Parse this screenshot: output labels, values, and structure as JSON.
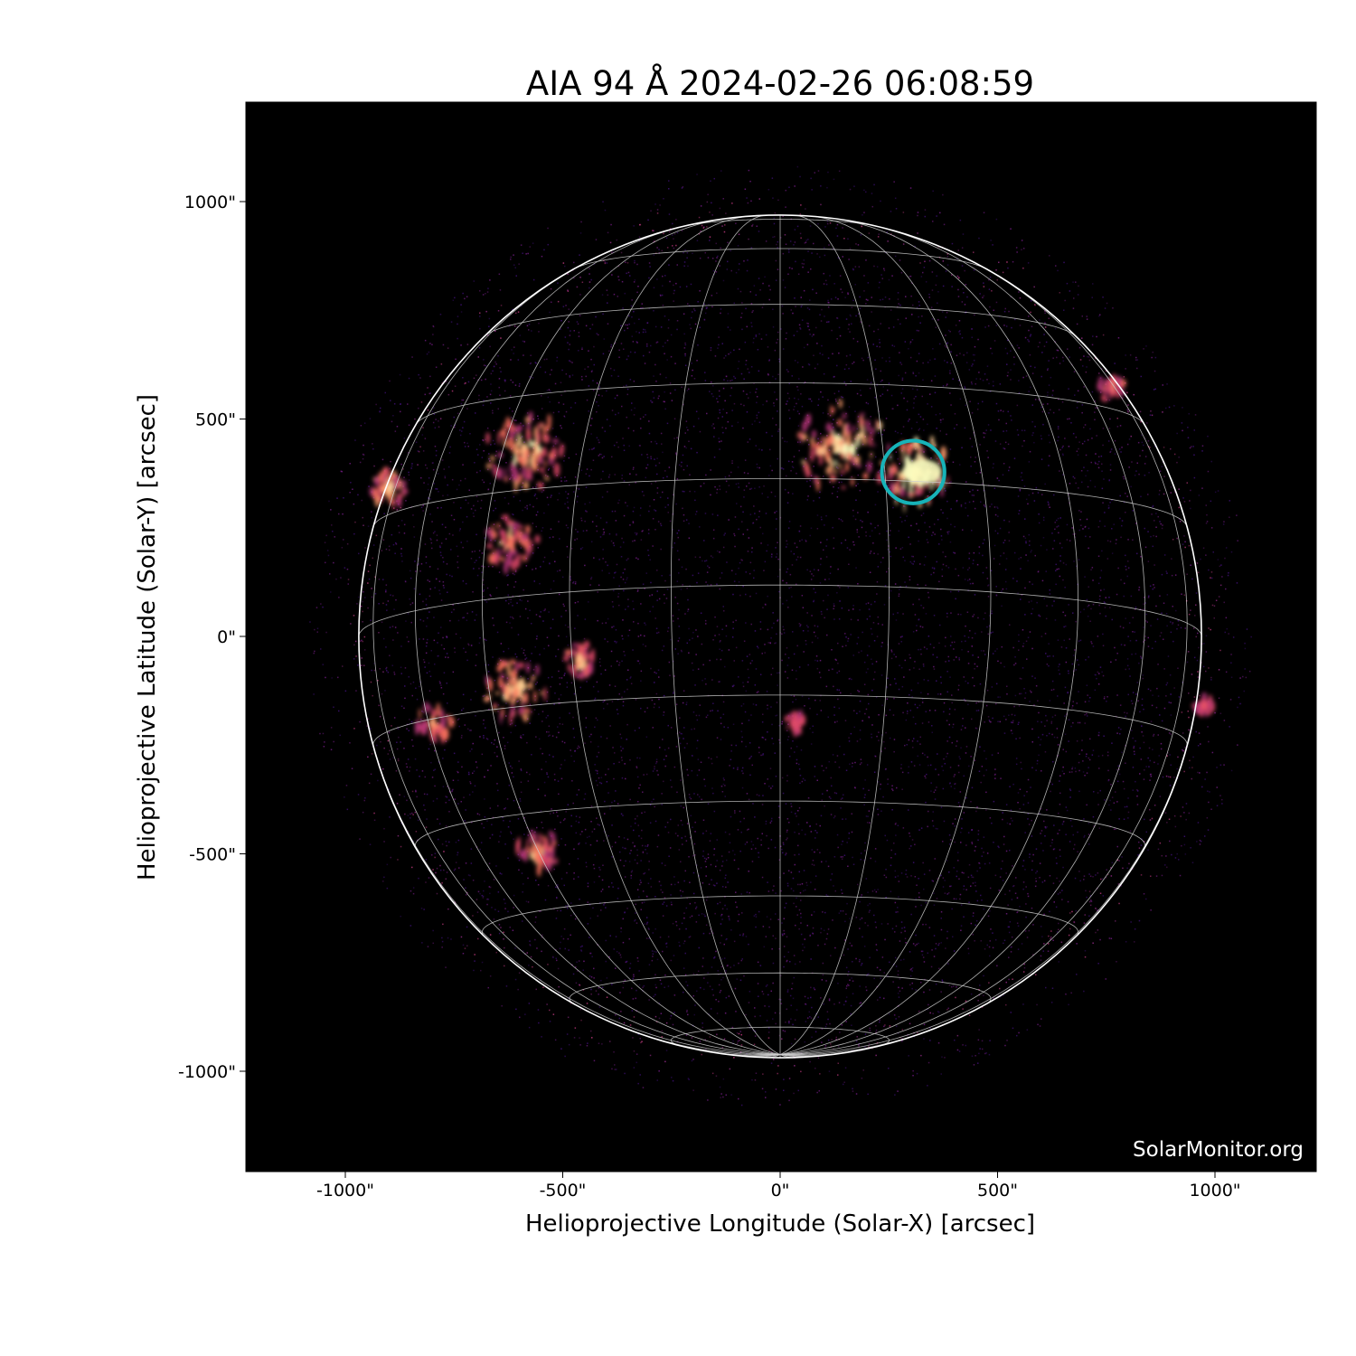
{
  "title": "AIA 94 Å 2024-02-26 06:08:59",
  "xlabel": "Helioprojective Longitude (Solar-X) [arcsec]",
  "ylabel": "Helioprojective Latitude (Solar-Y) [arcsec]",
  "x_ticks": [
    {
      "value": -1000,
      "label": "-1000\""
    },
    {
      "value": -500,
      "label": "-500\""
    },
    {
      "value": 0,
      "label": "0\""
    },
    {
      "value": 500,
      "label": "500\""
    },
    {
      "value": 1000,
      "label": "1000\""
    }
  ],
  "y_ticks": [
    {
      "value": 1000,
      "label": "1000\""
    },
    {
      "value": 500,
      "label": "500\""
    },
    {
      "value": 0,
      "label": "0\""
    },
    {
      "value": -500,
      "label": "-500\""
    },
    {
      "value": -1000,
      "label": "-1000\""
    }
  ],
  "axis_range_arcsec": {
    "x": [
      -1230,
      1230
    ],
    "y": [
      -1230,
      1230
    ]
  },
  "solar_radius_arcsec": 969,
  "grid_spacing_deg": 15,
  "colormap": "inferno-like (SDO AIA 94)",
  "highlight": {
    "center_arcsec": [
      306,
      378
    ],
    "radius_arcsec": 72,
    "color": "#17b3b8"
  },
  "watermark": "SolarMonitor.org",
  "colors": {
    "background": "#000000",
    "grid": "#cfcfcf",
    "limb": "#ffffff"
  }
}
